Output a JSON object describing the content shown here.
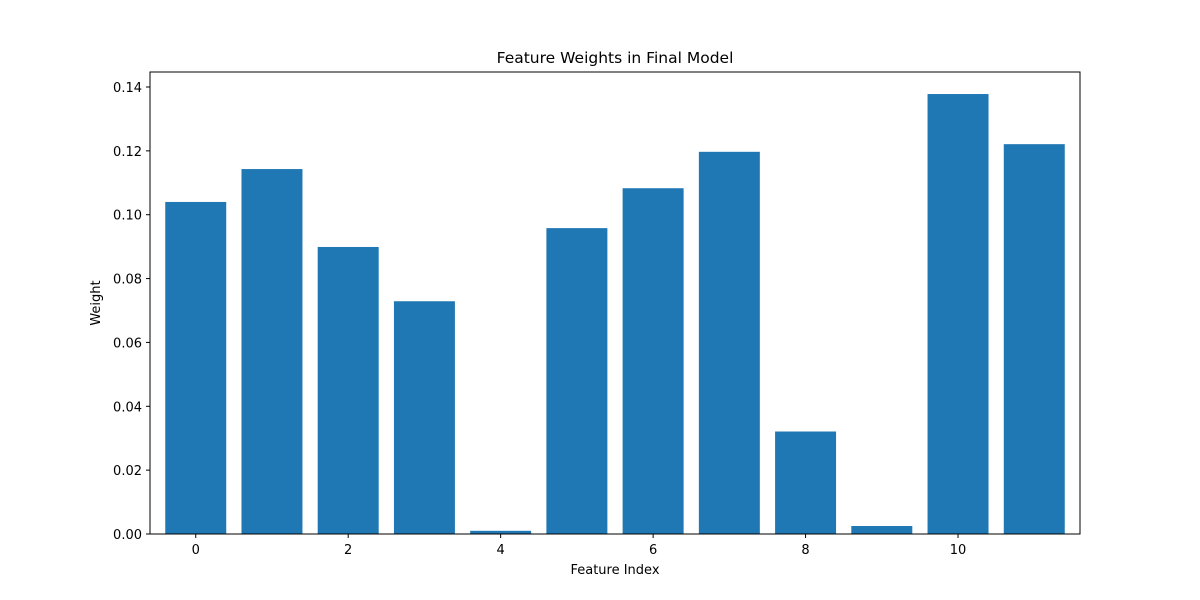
{
  "chart_data": {
    "type": "bar",
    "title": "Feature Weights in Final Model",
    "xlabel": "Feature Index",
    "ylabel": "Weight",
    "x": [
      0,
      1,
      2,
      3,
      4,
      5,
      6,
      7,
      8,
      9,
      10,
      11
    ],
    "values": [
      0.104,
      0.1143,
      0.0899,
      0.0729,
      0.001,
      0.0958,
      0.1083,
      0.1197,
      0.0321,
      0.0025,
      0.1378,
      0.1221
    ],
    "xlim": [
      -0.6,
      11.6
    ],
    "ylim": [
      0,
      0.1447
    ],
    "xticks": [
      0,
      2,
      4,
      6,
      8,
      10
    ],
    "xtick_labels": [
      "0",
      "2",
      "4",
      "6",
      "8",
      "10"
    ],
    "yticks": [
      0,
      0.02,
      0.04,
      0.06,
      0.08,
      0.1,
      0.12,
      0.14
    ],
    "ytick_labels": [
      "0.00",
      "0.02",
      "0.04",
      "0.06",
      "0.08",
      "0.10",
      "0.12",
      "0.14"
    ],
    "bar_color": "#1f77b4",
    "grid": false,
    "legend": "none"
  }
}
